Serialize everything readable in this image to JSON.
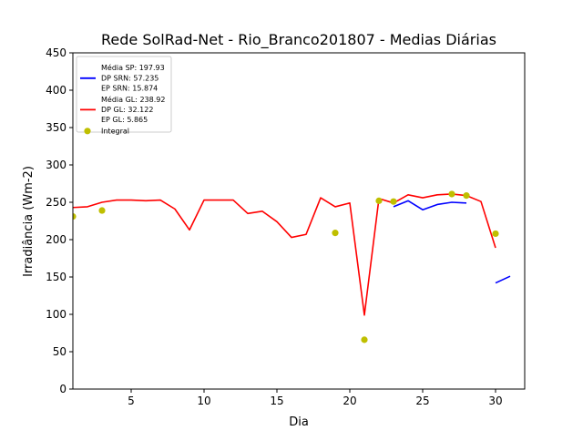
{
  "chart_data": {
    "type": "line",
    "title": "Rede SolRad-Net - Rio_Branco201807 - Medias Diárias",
    "xlabel": "Dia",
    "ylabel": "Irradiância (Wm-2)",
    "xlim": [
      1,
      32
    ],
    "ylim": [
      0,
      450
    ],
    "xticks": [
      5,
      10,
      15,
      20,
      25,
      30
    ],
    "yticks": [
      0,
      50,
      100,
      150,
      200,
      250,
      300,
      350,
      400,
      450
    ],
    "grid": false,
    "legend_position": "top-left",
    "series": [
      {
        "name": "Média SP: 197.93\nDP SRN: 57.235\nEP SRN: 15.874",
        "legend_lines": [
          "Média SP: 197.93",
          "DP SRN: 57.235",
          "EP SRN: 15.874"
        ],
        "color": "#0000ff",
        "style": "line",
        "segments": [
          {
            "x": [
              23,
              24,
              25,
              26,
              27,
              28
            ],
            "y": [
              244,
              252,
              240,
              247,
              250,
              249
            ]
          },
          {
            "x": [
              30,
              31
            ],
            "y": [
              142,
              151
            ]
          }
        ]
      },
      {
        "name": "Média GL: 238.92\nDP GL: 32.122\nEP GL: 5.865",
        "legend_lines": [
          "Média GL: 238.92",
          "DP GL: 32.122",
          "EP GL: 5.865"
        ],
        "color": "#ff0000",
        "style": "line",
        "segments": [
          {
            "x": [
              1,
              2,
              3,
              4,
              5,
              6,
              7,
              8,
              9,
              10,
              11,
              12,
              13,
              14,
              15,
              16,
              17,
              18,
              19,
              20,
              21,
              22,
              23,
              24,
              25,
              26,
              27,
              28,
              29,
              30
            ],
            "y": [
              243,
              244,
              250,
              253,
              253,
              252,
              253,
              241,
              213,
              253,
              253,
              253,
              235,
              238,
              224,
              203,
              207,
              256,
              244,
              249,
              99,
              255,
              249,
              260,
              256,
              260,
              261,
              259,
              251,
              189
            ]
          }
        ]
      },
      {
        "name": "Integral",
        "legend_lines": [
          "Integral"
        ],
        "color": "#bfbf00",
        "style": "scatter",
        "points": {
          "x": [
            1,
            3,
            19,
            21,
            22,
            23,
            27,
            28,
            30
          ],
          "y": [
            231,
            239,
            209,
            66,
            252,
            251,
            261,
            259,
            208
          ]
        }
      }
    ]
  }
}
